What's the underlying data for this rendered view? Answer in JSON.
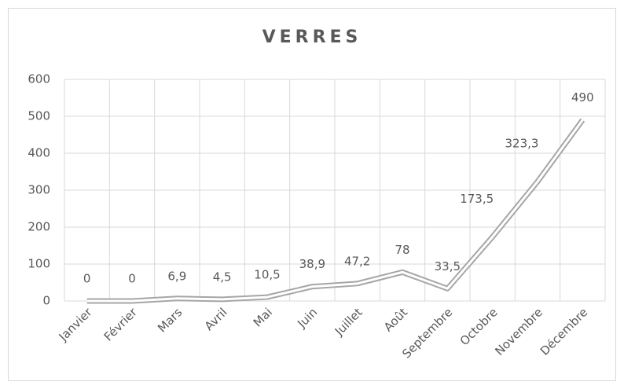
{
  "chart_data": {
    "type": "line",
    "title": "VERRES",
    "categories": [
      "Janvier",
      "Février",
      "Mars",
      "Avril",
      "Mai",
      "Juin",
      "Juillet",
      "Août",
      "Septembre",
      "Octobre",
      "Novembre",
      "Décembre"
    ],
    "values": [
      0,
      0,
      6.9,
      4.5,
      10.5,
      38.9,
      47.2,
      78,
      33.5,
      173.5,
      323.3,
      490
    ],
    "value_labels": [
      "0",
      "0",
      "6,9",
      "4,5",
      "10,5",
      "38,9",
      "47,2",
      "78",
      "33,5",
      "173,5",
      "323,3",
      "490"
    ],
    "color": "#a6a6a6",
    "ylim": [
      0,
      600
    ],
    "yticks": [
      0,
      100,
      200,
      300,
      400,
      500,
      600
    ],
    "grid": true
  }
}
